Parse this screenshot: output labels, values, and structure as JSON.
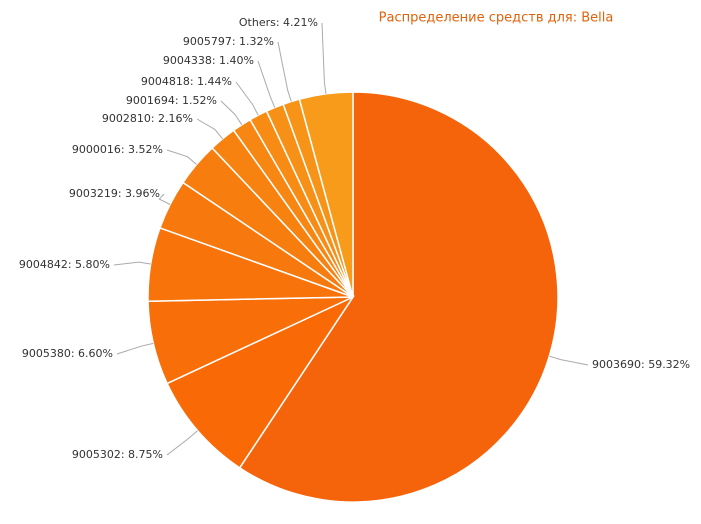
{
  "chart_data": {
    "type": "pie",
    "title": "Распределение средств для: Bella",
    "values": [
      59.32,
      8.75,
      6.6,
      5.8,
      3.96,
      3.52,
      2.16,
      1.52,
      1.44,
      1.4,
      1.32,
      4.21
    ],
    "value_labels": [
      "9003690: 59.32%",
      "9005302: 8.75%",
      "9005380: 6.60%",
      "9004842: 5.80%",
      "9003219: 3.96%",
      "9000016: 3.52%",
      "9002810: 2.16%",
      "9001694: 1.52%",
      "9004818: 1.44%",
      "9004338: 1.40%",
      "9005797: 1.32%",
      "Others: 4.21%"
    ],
    "colors": [
      "#f5640a",
      "#f96a06",
      "#f86e08",
      "#f8730a",
      "#f7780c",
      "#f77d0e",
      "#f78210",
      "#f78712",
      "#f78b14",
      "#f79016",
      "#f79418",
      "#f89a1a"
    ]
  }
}
